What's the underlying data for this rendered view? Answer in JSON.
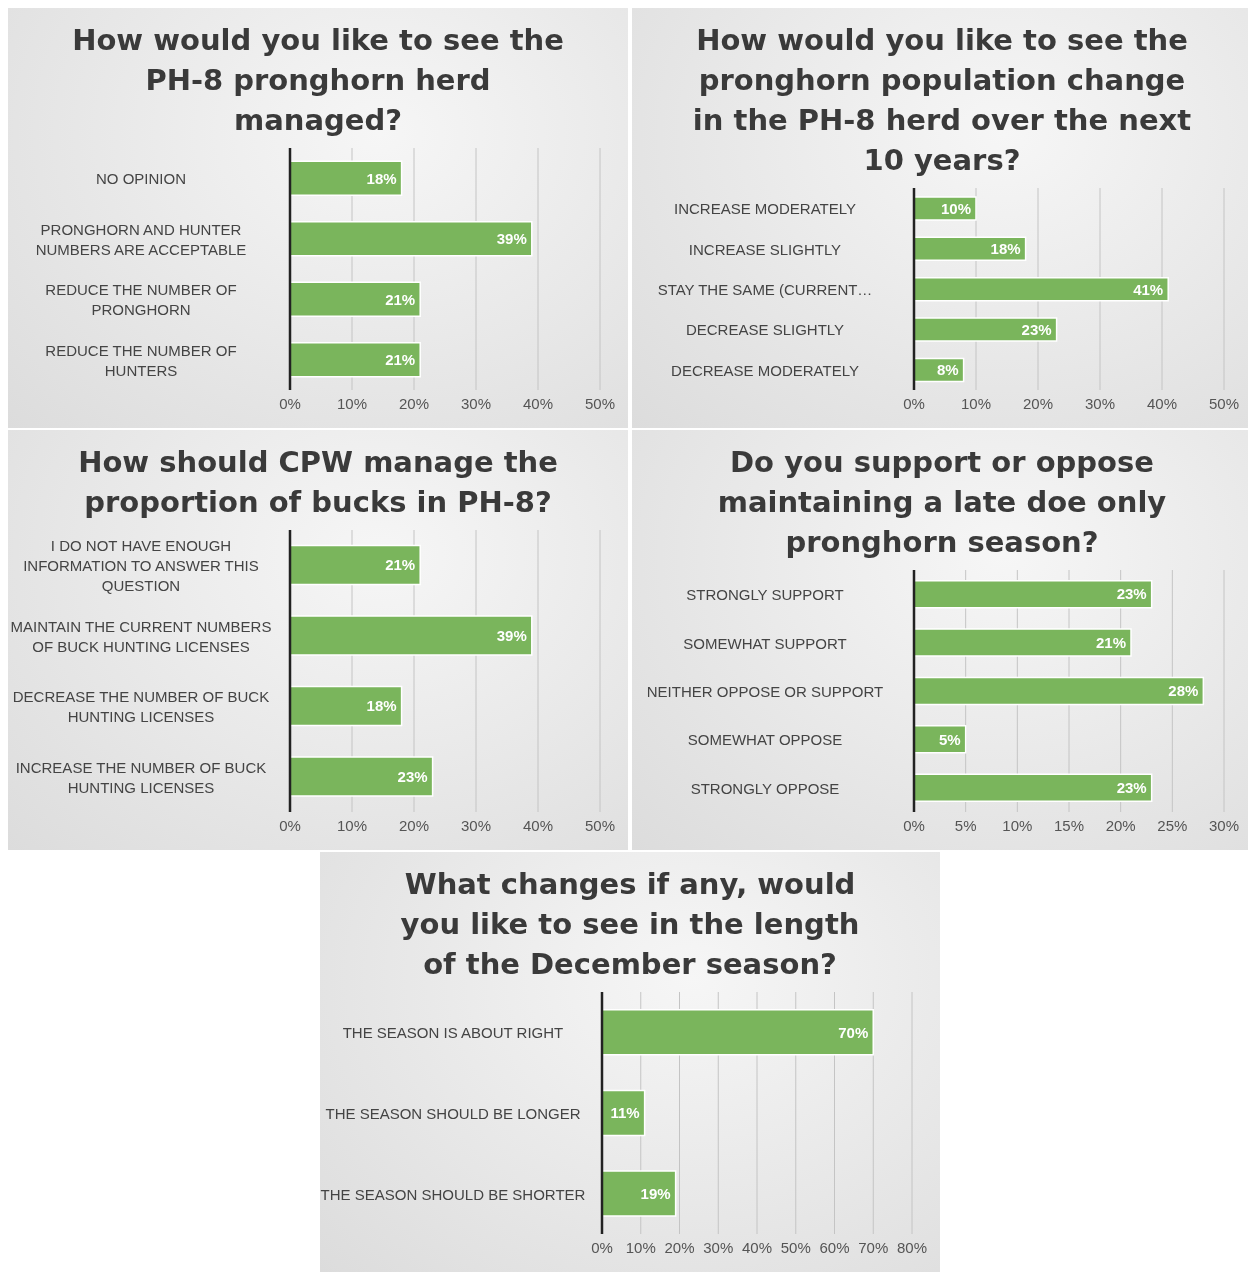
{
  "chart_data": [
    {
      "type": "bar",
      "orientation": "horizontal",
      "title": "How would you like to see the PH-8 pronghorn herd managed?",
      "categories": [
        "NO OPINION",
        "PRONGHORN AND HUNTER NUMBERS ARE ACCEPTABLE",
        "REDUCE THE NUMBER OF PRONGHORN",
        "REDUCE THE NUMBER OF HUNTERS"
      ],
      "values": [
        18,
        39,
        21,
        21
      ],
      "value_labels": [
        "18%",
        "39%",
        "21%",
        "21%"
      ],
      "color": "#7ab55c",
      "xlim": [
        0,
        50
      ],
      "xticks": [
        {
          "value": 0,
          "label": "0%"
        },
        {
          "value": 10,
          "label": "10%"
        },
        {
          "value": 20,
          "label": "20%"
        },
        {
          "value": 30,
          "label": "30%"
        },
        {
          "value": 40,
          "label": "40%"
        },
        {
          "value": 50,
          "label": "50%"
        }
      ],
      "grid": "x"
    },
    {
      "type": "bar",
      "orientation": "horizontal",
      "title": "How would you like to see the pronghorn population change in the PH-8 herd over the next 10 years?",
      "categories": [
        "INCREASE MODERATELY",
        "INCREASE SLIGHTLY",
        "STAY THE SAME (CURRENT…",
        "DECREASE SLIGHTLY",
        "DECREASE MODERATELY"
      ],
      "values": [
        10,
        18,
        41,
        23,
        8
      ],
      "value_labels": [
        "10%",
        "18%",
        "41%",
        "23%",
        "8%"
      ],
      "color": "#7ab55c",
      "xlim": [
        0,
        50
      ],
      "xticks": [
        {
          "value": 0,
          "label": "0%"
        },
        {
          "value": 10,
          "label": "10%"
        },
        {
          "value": 20,
          "label": "20%"
        },
        {
          "value": 30,
          "label": "30%"
        },
        {
          "value": 40,
          "label": "40%"
        },
        {
          "value": 50,
          "label": "50%"
        }
      ],
      "grid": "x"
    },
    {
      "type": "bar",
      "orientation": "horizontal",
      "title": "How should CPW manage the proportion of bucks in PH-8?",
      "categories": [
        "I DO NOT HAVE ENOUGH INFORMATION TO ANSWER THIS QUESTION",
        "MAINTAIN THE CURRENT NUMBERS OF BUCK HUNTING LICENSES",
        "DECREASE THE NUMBER OF BUCK HUNTING LICENSES",
        "INCREASE THE NUMBER OF BUCK HUNTING LICENSES"
      ],
      "values": [
        21,
        39,
        18,
        23
      ],
      "value_labels": [
        "21%",
        "39%",
        "18%",
        "23%"
      ],
      "color": "#7ab55c",
      "xlim": [
        0,
        50
      ],
      "xticks": [
        {
          "value": 0,
          "label": "0%"
        },
        {
          "value": 10,
          "label": "10%"
        },
        {
          "value": 20,
          "label": "20%"
        },
        {
          "value": 30,
          "label": "30%"
        },
        {
          "value": 40,
          "label": "40%"
        },
        {
          "value": 50,
          "label": "50%"
        }
      ],
      "grid": "x"
    },
    {
      "type": "bar",
      "orientation": "horizontal",
      "title": "Do you support or oppose maintaining a late doe only pronghorn season?",
      "categories": [
        "STRONGLY SUPPORT",
        "SOMEWHAT SUPPORT",
        "NEITHER OPPOSE OR SUPPORT",
        "SOMEWHAT OPPOSE",
        "STRONGLY OPPOSE"
      ],
      "values": [
        23,
        21,
        28,
        5,
        23
      ],
      "value_labels": [
        "23%",
        "21%",
        "28%",
        "5%",
        "23%"
      ],
      "color": "#7ab55c",
      "xlim": [
        0,
        30
      ],
      "xticks": [
        {
          "value": 0,
          "label": "0%"
        },
        {
          "value": 5,
          "label": "5%"
        },
        {
          "value": 10,
          "label": "10%"
        },
        {
          "value": 15,
          "label": "15%"
        },
        {
          "value": 20,
          "label": "20%"
        },
        {
          "value": 25,
          "label": "25%"
        },
        {
          "value": 30,
          "label": "30%"
        }
      ],
      "grid": "x"
    },
    {
      "type": "bar",
      "orientation": "horizontal",
      "title": "What changes if any, would you like to see in the length of the December season?",
      "categories": [
        "THE SEASON IS ABOUT RIGHT",
        "THE SEASON SHOULD BE LONGER",
        "THE SEASON SHOULD BE SHORTER"
      ],
      "values": [
        70,
        11,
        19
      ],
      "value_labels": [
        "70%",
        "11%",
        "19%"
      ],
      "color": "#7ab55c",
      "xlim": [
        0,
        80
      ],
      "xticks": [
        {
          "value": 0,
          "label": "0%"
        },
        {
          "value": 10,
          "label": "10%"
        },
        {
          "value": 20,
          "label": "20%"
        },
        {
          "value": 30,
          "label": "30%"
        },
        {
          "value": 40,
          "label": "40%"
        },
        {
          "value": 50,
          "label": "50%"
        },
        {
          "value": 60,
          "label": "60%"
        },
        {
          "value": 70,
          "label": "70%"
        },
        {
          "value": 80,
          "label": "80%"
        }
      ],
      "grid": "x"
    }
  ]
}
